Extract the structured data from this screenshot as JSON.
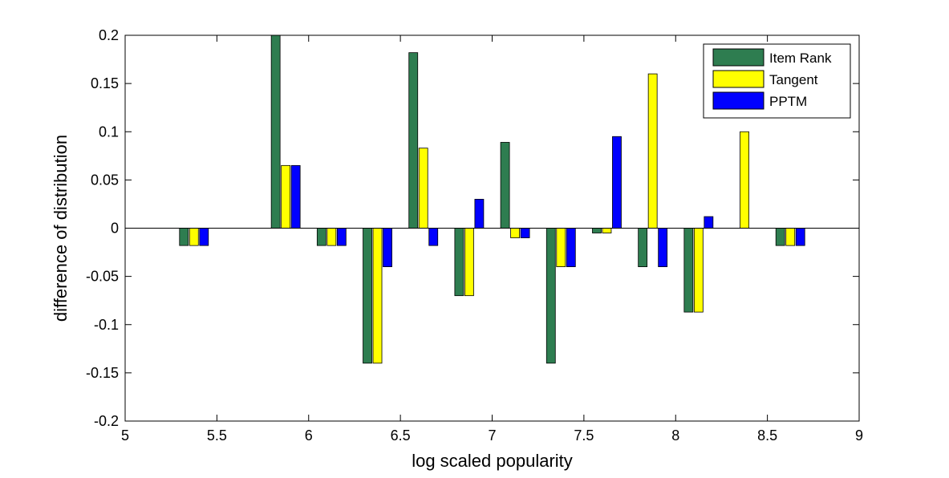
{
  "chart_data": {
    "type": "bar",
    "title": "",
    "xlabel": "log scaled popularity",
    "ylabel": "difference of distribution",
    "xlim": [
      5,
      9
    ],
    "ylim": [
      -0.2,
      0.2
    ],
    "xticks": [
      5,
      5.5,
      6,
      6.5,
      7,
      7.5,
      8,
      8.5,
      9
    ],
    "xtick_labels": [
      "5",
      "5.5",
      "6",
      "6.5",
      "7",
      "7.5",
      "8",
      "8.5",
      "9"
    ],
    "yticks": [
      -0.2,
      -0.15,
      -0.1,
      -0.05,
      0,
      0.05,
      0.1,
      0.15,
      0.2
    ],
    "ytick_labels": [
      "-0.2",
      "-0.15",
      "-0.1",
      "-0.05",
      "0",
      "0.05",
      "0.1",
      "0.15",
      "0.2"
    ],
    "grid": false,
    "legend_position": "top-right",
    "categories": [
      5.375,
      5.625,
      5.875,
      6.125,
      6.375,
      6.625,
      6.875,
      7.125,
      7.375,
      7.625,
      7.875,
      8.125,
      8.375,
      8.625
    ],
    "series": [
      {
        "name": "Item Rank",
        "color": "#2e7d50",
        "values": [
          -0.018,
          0,
          0.2,
          -0.018,
          -0.14,
          0.182,
          -0.07,
          0.089,
          -0.14,
          -0.005,
          -0.04,
          -0.087,
          0,
          -0.018
        ]
      },
      {
        "name": "Tangent",
        "color": "#ffff00",
        "values": [
          -0.018,
          0,
          0.065,
          -0.018,
          -0.14,
          0.083,
          -0.07,
          -0.01,
          -0.04,
          -0.005,
          0.16,
          -0.087,
          0.1,
          -0.018
        ]
      },
      {
        "name": "PPTM",
        "color": "#0000ff",
        "values": [
          -0.018,
          0,
          0.065,
          -0.018,
          -0.04,
          -0.018,
          0.03,
          -0.01,
          -0.04,
          0.095,
          -0.04,
          0.012,
          0,
          -0.018
        ]
      }
    ]
  }
}
